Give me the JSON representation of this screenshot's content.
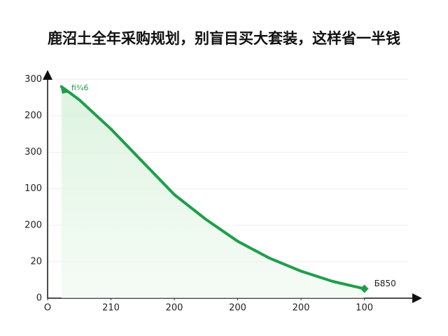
{
  "chart_data": {
    "type": "line",
    "title": "鹿沼土全年采购规划，别盲目买大套装，这样省一半钱",
    "x": [
      0.22,
      0.5,
      1,
      1.5,
      2,
      2.5,
      3,
      3.5,
      4,
      4.5,
      5
    ],
    "series": [
      {
        "color": "#1e9e4a",
        "values": [
          290,
          272,
          232,
          187,
          142,
          108,
          78,
          55,
          37,
          23,
          13
        ]
      }
    ],
    "xlim": [
      0,
      5.8
    ],
    "ylim": [
      0,
      310
    ],
    "xticks": [
      {
        "value": 0,
        "label": "O"
      },
      {
        "value": 1,
        "label": "210"
      },
      {
        "value": 2,
        "label": "200"
      },
      {
        "value": 3,
        "label": "200"
      },
      {
        "value": 4,
        "label": "200"
      },
      {
        "value": 5,
        "label": "100"
      }
    ],
    "yticks": [
      0,
      {
        "value": 50,
        "label": "20"
      },
      {
        "value": 100,
        "label": "200"
      },
      {
        "value": 150,
        "label": "100"
      },
      {
        "value": 200,
        "label": "300"
      },
      {
        "value": 250,
        "label": "200"
      },
      {
        "value": 300,
        "label": "300"
      }
    ],
    "annotations": [
      "fi¾6",
      "Б850"
    ],
    "grid": true
  }
}
